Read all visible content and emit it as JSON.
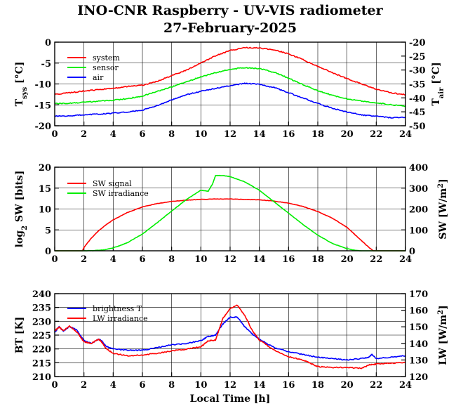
{
  "title": "INO-CNR Raspberry - UV-VIS radiometer",
  "subtitle": "27-February-2025",
  "chart_data": [
    {
      "type": "line",
      "id": "temperature",
      "ylabel": "T_sys [°C]",
      "ylabel_main": "T",
      "ylabel_sub": "sys",
      "ylabel_unit": "[°C]",
      "y2label_main": "T",
      "y2label_sub": "air",
      "y2label_unit": "[°C]",
      "xlim": [
        0,
        24
      ],
      "xticks": [
        "0",
        "2",
        "4",
        "6",
        "8",
        "10",
        "12",
        "14",
        "16",
        "18",
        "20",
        "22",
        "24"
      ],
      "ylim": [
        -20,
        0
      ],
      "yticks": [
        "0",
        "-5",
        "-10",
        "-15",
        "-20"
      ],
      "y2lim": [
        -50,
        -20
      ],
      "y2ticks": [
        "-20",
        "-25",
        "-30",
        "-35",
        "-40",
        "-45",
        "-50"
      ],
      "grid": true,
      "legend_position": "top-left",
      "series": [
        {
          "name": "system",
          "color": "#ff0000",
          "axis": "left",
          "x": [
            0,
            1,
            2,
            3,
            4,
            5,
            6,
            7,
            8,
            9,
            10,
            11,
            12,
            13,
            14,
            15,
            16,
            17,
            18,
            19,
            20,
            21,
            22,
            23,
            24
          ],
          "y": [
            -12.5,
            -12.1,
            -11.7,
            -11.4,
            -11.0,
            -10.6,
            -10.3,
            -9.4,
            -8.0,
            -6.7,
            -5.0,
            -3.3,
            -2.0,
            -1.3,
            -1.4,
            -1.8,
            -2.8,
            -4.2,
            -5.8,
            -7.3,
            -8.7,
            -10.0,
            -11.3,
            -12.1,
            -12.6
          ]
        },
        {
          "name": "sensor",
          "color": "#00ee00",
          "axis": "left",
          "x": [
            0,
            1,
            2,
            3,
            4,
            5,
            6,
            7,
            8,
            9,
            10,
            11,
            12,
            13,
            14,
            15,
            16,
            17,
            18,
            19,
            20,
            21,
            22,
            23,
            24
          ],
          "y": [
            -14.7,
            -14.6,
            -14.4,
            -14.1,
            -13.9,
            -13.5,
            -12.9,
            -11.8,
            -10.7,
            -9.5,
            -8.3,
            -7.3,
            -6.5,
            -6.1,
            -6.3,
            -7.2,
            -8.6,
            -10.2,
            -11.6,
            -12.7,
            -13.6,
            -14.1,
            -14.5,
            -15.0,
            -15.3
          ]
        },
        {
          "name": "air",
          "color": "#0000ff",
          "axis": "right",
          "x": [
            0,
            1,
            2,
            3,
            4,
            5,
            6,
            7,
            8,
            9,
            10,
            11,
            12,
            13,
            14,
            15,
            16,
            17,
            18,
            19,
            20,
            21,
            22,
            23,
            24
          ],
          "y": [
            -46.6,
            -46.4,
            -46.1,
            -45.8,
            -45.5,
            -45.1,
            -44.4,
            -42.8,
            -40.7,
            -38.9,
            -37.6,
            -36.6,
            -35.6,
            -34.8,
            -35.1,
            -36.3,
            -38.1,
            -40.1,
            -42.0,
            -43.7,
            -45.1,
            -46.1,
            -46.6,
            -47.1,
            -47.0
          ]
        }
      ]
    },
    {
      "type": "line",
      "id": "shortwave",
      "ylabel": "log2 SW [bits]",
      "ylabel_main": "log",
      "ylabel_sub": "2",
      "ylabel_unit": "SW [bits]",
      "y2label_main": "SW [W/m",
      "y2label_sup": "2",
      "y2label_tail": "]",
      "xlim": [
        0,
        24
      ],
      "xticks": [
        "0",
        "2",
        "4",
        "6",
        "8",
        "10",
        "12",
        "14",
        "16",
        "18",
        "20",
        "22",
        "24"
      ],
      "ylim": [
        0,
        20
      ],
      "yticks": [
        "0",
        "5",
        "10",
        "15",
        "20"
      ],
      "y2lim": [
        0,
        400
      ],
      "y2ticks": [
        "0",
        "100",
        "200",
        "300",
        "400"
      ],
      "grid": true,
      "legend_position": "top-left",
      "series": [
        {
          "name": "SW signal",
          "color": "#ff0000",
          "axis": "left",
          "x": [
            0,
            1.9,
            2.0,
            2.5,
            3,
            3.5,
            4,
            5,
            6,
            7,
            8,
            9,
            10,
            11,
            12,
            13,
            14,
            15,
            16,
            17,
            18,
            19,
            20,
            20.5,
            21,
            21.5,
            21.8,
            22,
            24
          ],
          "y": [
            0,
            0,
            0.8,
            3.0,
            4.8,
            6.2,
            7.4,
            9.2,
            10.5,
            11.3,
            11.8,
            12.1,
            12.3,
            12.4,
            12.4,
            12.3,
            12.2,
            11.9,
            11.4,
            10.6,
            9.4,
            7.8,
            5.6,
            4.0,
            2.4,
            0.8,
            0,
            0,
            0
          ]
        },
        {
          "name": "SW irradiance",
          "color": "#00ee00",
          "axis": "right",
          "x": [
            0,
            2,
            3,
            3.5,
            4,
            4.5,
            5,
            6,
            7,
            8,
            9,
            10,
            10.5,
            10.8,
            11,
            11.5,
            12,
            13,
            14,
            15,
            16,
            17,
            18,
            19,
            20,
            20.5,
            21,
            24
          ],
          "y": [
            0,
            0,
            2,
            6,
            14,
            26,
            40,
            80,
            134,
            190,
            245,
            290,
            285,
            320,
            360,
            360,
            355,
            330,
            290,
            235,
            180,
            125,
            75,
            35,
            10,
            3,
            0,
            0
          ]
        }
      ]
    },
    {
      "type": "line",
      "id": "longwave",
      "ylabel": "BT [K]",
      "y2label_main": "LW [W/m",
      "y2label_sup": "2",
      "y2label_tail": "]",
      "xlabel": "Local Time [h]",
      "xlim": [
        0,
        24
      ],
      "xticks": [
        "0",
        "2",
        "4",
        "6",
        "8",
        "10",
        "12",
        "14",
        "16",
        "18",
        "20",
        "22",
        "24"
      ],
      "ylim": [
        210,
        240
      ],
      "yticks": [
        "210",
        "215",
        "220",
        "225",
        "230",
        "235",
        "240"
      ],
      "y2lim": [
        120,
        170
      ],
      "y2ticks": [
        "120",
        "130",
        "140",
        "150",
        "160",
        "170"
      ],
      "grid": true,
      "legend_position": "top-left",
      "series": [
        {
          "name": "brightness T",
          "color": "#0000ff",
          "axis": "left",
          "x": [
            0,
            0.3,
            0.6,
            1,
            1.5,
            2,
            2.5,
            3,
            3.2,
            3.5,
            4,
            5,
            6,
            7,
            8,
            9,
            10,
            10.5,
            11,
            11.5,
            12,
            12.5,
            13,
            13.5,
            14,
            15,
            16,
            17,
            18,
            19,
            20,
            21,
            21.5,
            21.7,
            22,
            23,
            24
          ],
          "y": [
            226.0,
            228.0,
            226.5,
            228.0,
            227.0,
            223.0,
            222.0,
            223.5,
            223.0,
            221.0,
            220.0,
            219.5,
            219.5,
            220.5,
            221.5,
            222.0,
            223.0,
            224.5,
            225.0,
            229.0,
            231.5,
            231.5,
            228.0,
            225.5,
            223.5,
            220.5,
            219.0,
            218.0,
            217.0,
            216.5,
            216.0,
            216.5,
            217.0,
            218.0,
            216.5,
            217.0,
            217.5
          ]
        },
        {
          "name": "LW irradiance",
          "color": "#ff0000",
          "axis": "right",
          "x": [
            0,
            0.3,
            0.6,
            1,
            1.5,
            2,
            2.5,
            3,
            3.2,
            3.5,
            4,
            5,
            6,
            7,
            8,
            9,
            10,
            10.5,
            11,
            11.5,
            12,
            12.5,
            13,
            13.5,
            14,
            15,
            16,
            17,
            17.5,
            18,
            19,
            20,
            21,
            21.5,
            22,
            23,
            24
          ],
          "y": [
            147.5,
            150.0,
            147.5,
            150.5,
            147.0,
            141.0,
            140.0,
            142.5,
            141.0,
            137.0,
            134.0,
            132.5,
            133.0,
            134.0,
            135.5,
            136.5,
            138.0,
            141.5,
            142.0,
            155.0,
            161.0,
            163.0,
            157.0,
            148.0,
            142.0,
            136.0,
            132.0,
            130.0,
            128.0,
            126.0,
            125.5,
            125.5,
            125.0,
            127.0,
            127.5,
            128.0,
            128.5
          ]
        }
      ]
    }
  ]
}
